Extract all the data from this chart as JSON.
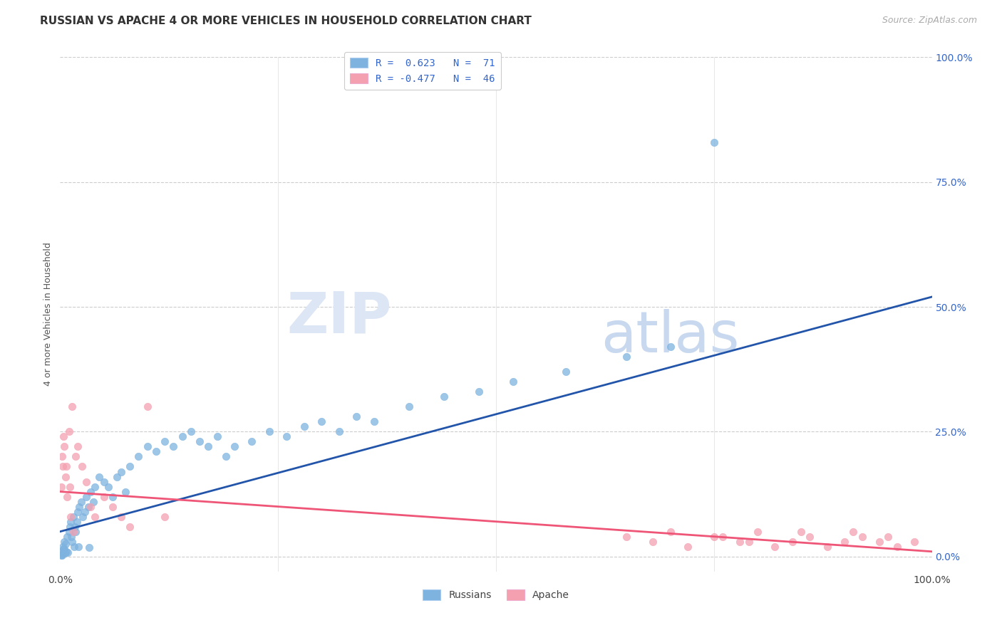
{
  "title": "RUSSIAN VS APACHE 4 OR MORE VEHICLES IN HOUSEHOLD CORRELATION CHART",
  "source": "Source: ZipAtlas.com",
  "ylabel": "4 or more Vehicles in Household",
  "legend_blue_r": "R =  0.623",
  "legend_blue_n": "N =  71",
  "legend_pink_r": "R = -0.477",
  "legend_pink_n": "N =  46",
  "legend_label_blue": "Russians",
  "legend_label_pink": "Apache",
  "blue_color": "#7EB3E0",
  "pink_color": "#F4A0B0",
  "blue_line_color": "#2255AA",
  "pink_line_color": "#EE5577",
  "blue_line": [
    0,
    5,
    100,
    52
  ],
  "pink_line": [
    0,
    13,
    100,
    1
  ],
  "yticks": [
    0,
    25,
    50,
    75,
    100
  ],
  "ytick_labels": [
    "0.0%",
    "25.0%",
    "50.0%",
    "75.0%",
    "100.0%"
  ],
  "xlim": [
    0,
    100
  ],
  "ylim": [
    -3,
    100
  ],
  "blue_scatter_x": [
    0.1,
    0.2,
    0.3,
    0.4,
    0.5,
    0.6,
    0.7,
    0.8,
    0.9,
    1.0,
    1.1,
    1.2,
    1.3,
    1.4,
    1.5,
    1.6,
    1.7,
    1.8,
    1.9,
    2.0,
    2.2,
    2.4,
    2.6,
    2.8,
    3.0,
    3.2,
    3.5,
    3.8,
    4.0,
    4.5,
    5.0,
    5.5,
    6.0,
    6.5,
    7.0,
    7.5,
    8.0,
    9.0,
    10.0,
    11.0,
    12.0,
    13.0,
    14.0,
    15.0,
    16.0,
    17.0,
    18.0,
    19.0,
    20.0,
    22.0,
    24.0,
    26.0,
    28.0,
    30.0,
    32.0,
    34.0,
    36.0,
    40.0,
    44.0,
    48.0,
    52.0,
    58.0,
    65.0,
    70.0,
    75.0,
    0.15,
    0.25,
    0.45,
    0.55,
    2.1,
    3.3
  ],
  "blue_scatter_y": [
    1.0,
    0.5,
    2.0,
    1.5,
    3.0,
    2.5,
    1.0,
    4.0,
    0.8,
    5.0,
    6.0,
    7.0,
    4.0,
    3.0,
    8.0,
    2.0,
    6.0,
    5.0,
    7.0,
    9.0,
    10.0,
    11.0,
    8.0,
    9.0,
    12.0,
    10.0,
    13.0,
    11.0,
    14.0,
    16.0,
    15.0,
    14.0,
    12.0,
    16.0,
    17.0,
    13.0,
    18.0,
    20.0,
    22.0,
    21.0,
    23.0,
    22.0,
    24.0,
    25.0,
    23.0,
    22.0,
    24.0,
    20.0,
    22.0,
    23.0,
    25.0,
    24.0,
    26.0,
    27.0,
    25.0,
    28.0,
    27.0,
    30.0,
    32.0,
    33.0,
    35.0,
    37.0,
    40.0,
    42.0,
    83.0,
    0.3,
    0.2,
    1.5,
    0.7,
    2.0,
    1.8
  ],
  "pink_scatter_x": [
    0.1,
    0.2,
    0.3,
    0.5,
    0.6,
    0.8,
    1.0,
    1.2,
    1.4,
    1.5,
    1.8,
    2.0,
    2.5,
    3.0,
    3.5,
    4.0,
    5.0,
    6.0,
    7.0,
    8.0,
    10.0,
    12.0,
    0.4,
    0.7,
    1.1,
    65.0,
    68.0,
    70.0,
    72.0,
    75.0,
    78.0,
    80.0,
    82.0,
    84.0,
    86.0,
    88.0,
    90.0,
    92.0,
    94.0,
    96.0,
    98.0,
    85.0,
    76.0,
    79.0,
    91.0,
    95.0
  ],
  "pink_scatter_y": [
    14.0,
    20.0,
    18.0,
    22.0,
    16.0,
    12.0,
    25.0,
    8.0,
    30.0,
    5.0,
    20.0,
    22.0,
    18.0,
    15.0,
    10.0,
    8.0,
    12.0,
    10.0,
    8.0,
    6.0,
    30.0,
    8.0,
    24.0,
    18.0,
    14.0,
    4.0,
    3.0,
    5.0,
    2.0,
    4.0,
    3.0,
    5.0,
    2.0,
    3.0,
    4.0,
    2.0,
    3.0,
    4.0,
    3.0,
    2.0,
    3.0,
    5.0,
    4.0,
    3.0,
    5.0,
    4.0
  ],
  "title_fontsize": 11,
  "source_fontsize": 9,
  "axis_label_fontsize": 9,
  "tick_fontsize": 10,
  "legend_fontsize": 10
}
